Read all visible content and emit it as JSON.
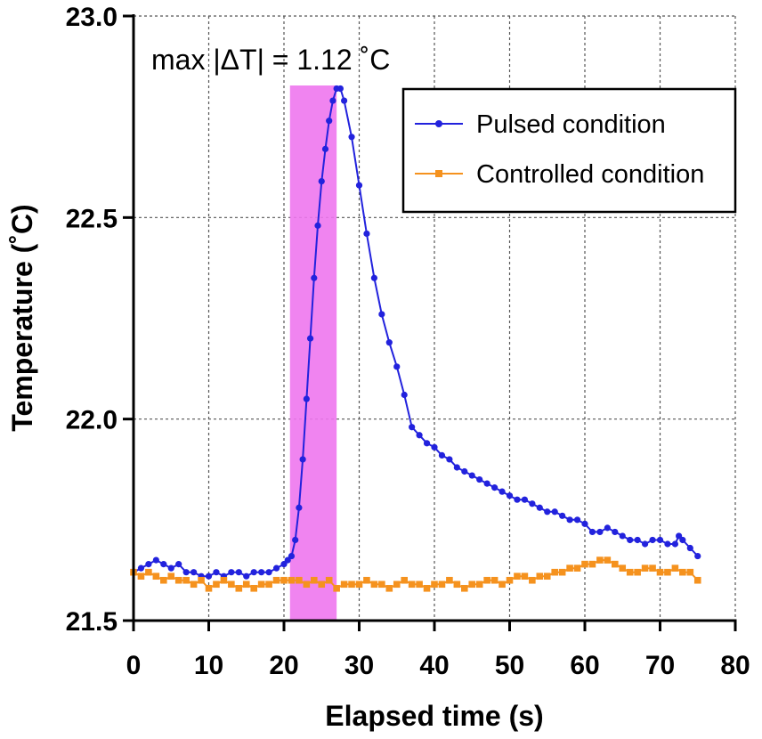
{
  "chart_data": {
    "type": "line",
    "xlabel": "Elapsed time (s)",
    "ylabel": "Temperature (˚C)",
    "xlim": [
      0,
      80
    ],
    "ylim": [
      21.5,
      23.0
    ],
    "xticks": [
      "0",
      "10",
      "20",
      "30",
      "40",
      "50",
      "60",
      "70",
      "80"
    ],
    "yticks": [
      "21.5",
      "22.0",
      "22.5",
      "23.0"
    ],
    "xtick_values": [
      0,
      10,
      20,
      30,
      40,
      50,
      60,
      70,
      80
    ],
    "ytick_values": [
      21.5,
      22.0,
      22.5,
      23.0
    ],
    "grid": true,
    "legend_position": "top-right",
    "annotation": "max |ΔT| = 1.12 ˚C",
    "highlight_region": {
      "x_start": 20.8,
      "x_end": 27.0,
      "color": "#ee77ee"
    },
    "series": [
      {
        "name": "Pulsed condition",
        "color": "#2222dd",
        "marker": "circle",
        "x": [
          0,
          1,
          2,
          3,
          4,
          5,
          6,
          7,
          8,
          9,
          10,
          11,
          12,
          13,
          14,
          15,
          16,
          17,
          18,
          19,
          20,
          20.5,
          21,
          21.5,
          22,
          22.5,
          23,
          23.5,
          24,
          24.5,
          25,
          25.5,
          26,
          26.5,
          27,
          27.5,
          28,
          29,
          30,
          31,
          32,
          33,
          34,
          35,
          36,
          37,
          38,
          39,
          40,
          41,
          42,
          43,
          44,
          45,
          46,
          47,
          48,
          49,
          50,
          51,
          52,
          53,
          54,
          55,
          56,
          57,
          58,
          59,
          60,
          61,
          62,
          63,
          64,
          65,
          66,
          67,
          68,
          69,
          70,
          71,
          72,
          72.5,
          73,
          74,
          75
        ],
        "values": [
          21.62,
          21.63,
          21.64,
          21.65,
          21.64,
          21.63,
          21.64,
          21.62,
          21.62,
          21.61,
          21.61,
          21.62,
          21.61,
          21.62,
          21.62,
          21.61,
          21.62,
          21.62,
          21.62,
          21.63,
          21.64,
          21.65,
          21.66,
          21.7,
          21.78,
          21.9,
          22.05,
          22.2,
          22.35,
          22.48,
          22.59,
          22.67,
          22.74,
          22.79,
          22.82,
          22.82,
          22.79,
          22.7,
          22.58,
          22.46,
          22.35,
          22.26,
          22.19,
          22.13,
          22.06,
          21.98,
          21.96,
          21.94,
          21.93,
          21.91,
          21.9,
          21.88,
          21.87,
          21.86,
          21.85,
          21.84,
          21.83,
          21.82,
          21.81,
          21.8,
          21.8,
          21.79,
          21.78,
          21.77,
          21.77,
          21.76,
          21.75,
          21.75,
          21.74,
          21.72,
          21.72,
          21.73,
          21.72,
          21.71,
          21.7,
          21.7,
          21.69,
          21.7,
          21.7,
          21.69,
          21.69,
          21.71,
          21.7,
          21.68,
          21.66
        ]
      },
      {
        "name": "Controlled condition",
        "color": "#f5921e",
        "marker": "square",
        "x": [
          0,
          1,
          2,
          3,
          4,
          5,
          6,
          7,
          8,
          9,
          10,
          11,
          12,
          13,
          14,
          15,
          16,
          17,
          18,
          19,
          20,
          21,
          22,
          23,
          24,
          25,
          26,
          27,
          28,
          29,
          30,
          31,
          32,
          33,
          34,
          35,
          36,
          37,
          38,
          39,
          40,
          41,
          42,
          43,
          44,
          45,
          46,
          47,
          48,
          49,
          50,
          51,
          52,
          53,
          54,
          55,
          56,
          57,
          58,
          59,
          60,
          61,
          62,
          63,
          64,
          65,
          66,
          67,
          68,
          69,
          70,
          71,
          72,
          73,
          74,
          75
        ],
        "values": [
          21.62,
          21.61,
          21.62,
          21.61,
          21.6,
          21.61,
          21.6,
          21.6,
          21.59,
          21.6,
          21.58,
          21.59,
          21.6,
          21.59,
          21.58,
          21.59,
          21.58,
          21.59,
          21.59,
          21.6,
          21.6,
          21.6,
          21.6,
          21.59,
          21.6,
          21.59,
          21.6,
          21.58,
          21.59,
          21.59,
          21.59,
          21.6,
          21.59,
          21.59,
          21.58,
          21.59,
          21.6,
          21.59,
          21.59,
          21.58,
          21.59,
          21.59,
          21.6,
          21.59,
          21.58,
          21.59,
          21.59,
          21.6,
          21.6,
          21.59,
          21.6,
          21.61,
          21.61,
          21.6,
          21.61,
          21.61,
          21.62,
          21.62,
          21.63,
          21.63,
          21.64,
          21.64,
          21.65,
          21.65,
          21.64,
          21.63,
          21.62,
          21.62,
          21.63,
          21.63,
          21.62,
          21.62,
          21.63,
          21.62,
          21.62,
          21.6
        ]
      }
    ]
  }
}
